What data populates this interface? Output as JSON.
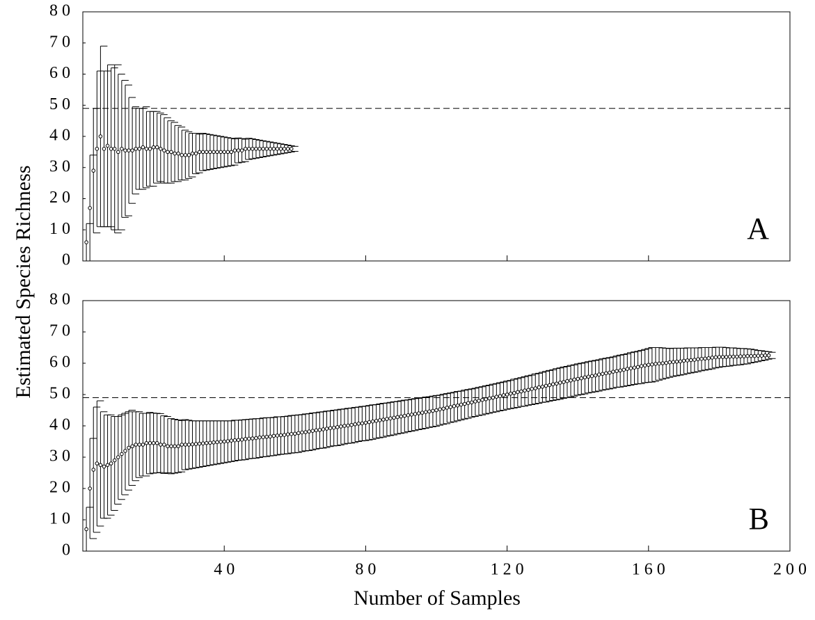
{
  "chart_data": [
    {
      "type": "errorbar",
      "ylabel": "Estimated Species Richness",
      "label": "A",
      "hline": 49,
      "color": "#000000",
      "xlim": [
        0,
        200
      ],
      "xticks": [
        40,
        80,
        120,
        160
      ],
      "xticklabels": false,
      "ylim": [
        0,
        80
      ],
      "yticks": [
        0,
        10,
        20,
        30,
        40,
        50,
        60,
        70,
        80
      ],
      "x": [
        1,
        2,
        3,
        4,
        5,
        6,
        7,
        8,
        9,
        10,
        11,
        12,
        13,
        14,
        15,
        16,
        17,
        18,
        19,
        20,
        21,
        22,
        23,
        24,
        25,
        26,
        27,
        28,
        29,
        30,
        31,
        32,
        33,
        34,
        35,
        36,
        37,
        38,
        39,
        40,
        41,
        42,
        43,
        44,
        45,
        46,
        47,
        48,
        49,
        50,
        51,
        52,
        53,
        54,
        55,
        56,
        57,
        58,
        59
      ],
      "values": [
        6,
        17,
        29,
        36,
        40,
        36,
        37,
        36,
        36,
        35,
        36,
        35.5,
        35.5,
        35.5,
        36,
        36,
        36.5,
        36,
        36,
        36.5,
        36.5,
        36,
        35.5,
        35,
        35,
        34.5,
        34.5,
        34,
        34,
        34,
        34.5,
        34.5,
        35,
        35,
        35,
        35,
        35,
        35,
        35,
        35,
        35,
        35,
        35.5,
        35.5,
        35.5,
        36,
        36,
        36,
        36,
        36,
        36,
        36,
        36,
        36,
        36,
        36,
        36,
        36,
        36
      ],
      "errors": [
        6,
        17,
        20,
        25,
        29,
        25,
        26,
        26,
        27,
        25,
        22,
        21,
        17,
        14,
        13,
        13,
        13,
        12,
        12,
        11.5,
        11,
        11,
        10.5,
        10,
        9.5,
        9,
        8.5,
        8,
        7.5,
        7,
        6.5,
        6.2,
        6,
        5.8,
        5.6,
        5.4,
        5.2,
        5,
        4.8,
        4.6,
        4.4,
        4.2,
        4,
        3.8,
        3.6,
        3.4,
        3.2,
        3,
        2.8,
        2.6,
        2.4,
        2.2,
        2,
        1.8,
        1.6,
        1.4,
        1.2,
        1,
        0.8
      ]
    },
    {
      "type": "errorbar",
      "xlabel": "Number of Samples",
      "label": "B",
      "hline": 49,
      "color": "#000000",
      "xlim": [
        0,
        200
      ],
      "xticks": [
        40,
        80,
        120,
        160,
        200
      ],
      "xticklabels": true,
      "ylim": [
        0,
        80
      ],
      "yticks": [
        0,
        10,
        20,
        30,
        40,
        50,
        60,
        70,
        80
      ],
      "x": [
        1,
        2,
        3,
        4,
        5,
        6,
        7,
        8,
        9,
        10,
        11,
        12,
        13,
        14,
        15,
        16,
        17,
        18,
        19,
        20,
        21,
        22,
        23,
        24,
        25,
        26,
        27,
        28,
        29,
        30,
        31,
        32,
        33,
        34,
        35,
        36,
        37,
        38,
        39,
        40,
        41,
        42,
        43,
        44,
        45,
        46,
        47,
        48,
        49,
        50,
        51,
        52,
        53,
        54,
        55,
        56,
        57,
        58,
        59,
        60,
        61,
        62,
        63,
        64,
        65,
        66,
        67,
        68,
        69,
        70,
        71,
        72,
        73,
        74,
        75,
        76,
        77,
        78,
        79,
        80,
        81,
        82,
        83,
        84,
        85,
        86,
        87,
        88,
        89,
        90,
        91,
        92,
        93,
        94,
        95,
        96,
        97,
        98,
        99,
        100,
        101,
        102,
        103,
        104,
        105,
        106,
        107,
        108,
        109,
        110,
        111,
        112,
        113,
        114,
        115,
        116,
        117,
        118,
        119,
        120,
        121,
        122,
        123,
        124,
        125,
        126,
        127,
        128,
        129,
        130,
        131,
        132,
        133,
        134,
        135,
        136,
        137,
        138,
        139,
        140,
        141,
        142,
        143,
        144,
        145,
        146,
        147,
        148,
        149,
        150,
        151,
        152,
        153,
        154,
        155,
        156,
        157,
        158,
        159,
        160,
        161,
        162,
        163,
        164,
        165,
        166,
        167,
        168,
        169,
        170,
        171,
        172,
        173,
        174,
        175,
        176,
        177,
        178,
        179,
        180,
        181,
        182,
        183,
        184,
        185,
        186,
        187,
        188,
        189,
        190,
        191,
        192,
        193,
        194
      ],
      "values": [
        7,
        20,
        26,
        28,
        27.5,
        27,
        27.5,
        28,
        29,
        30,
        31,
        32,
        33,
        33.5,
        34,
        34,
        34,
        34.5,
        34.5,
        34.5,
        34.5,
        34,
        34,
        33.5,
        33.5,
        33.5,
        33.5,
        34,
        34,
        34,
        34.1,
        34.2,
        34.3,
        34.4,
        34.5,
        34.6,
        34.7,
        34.8,
        34.9,
        35,
        35.1,
        35.3,
        35.4,
        35.5,
        35.6,
        35.8,
        35.9,
        36,
        36.1,
        36.3,
        36.4,
        36.5,
        36.6,
        36.8,
        36.9,
        37,
        37.1,
        37.3,
        37.4,
        37.5,
        37.7,
        37.9,
        38,
        38.2,
        38.4,
        38.6,
        38.7,
        38.9,
        39.1,
        39.3,
        39.4,
        39.6,
        39.8,
        40,
        40.1,
        40.3,
        40.5,
        40.7,
        40.8,
        41,
        41.2,
        41.4,
        41.6,
        41.8,
        42,
        42.2,
        42.4,
        42.6,
        42.8,
        43,
        43.2,
        43.4,
        43.6,
        43.8,
        44,
        44.2,
        44.4,
        44.6,
        44.8,
        45,
        45.3,
        45.5,
        45.8,
        46,
        46.3,
        46.5,
        46.8,
        47,
        47.3,
        47.5,
        47.8,
        48,
        48.3,
        48.5,
        48.8,
        49,
        49.3,
        49.5,
        49.8,
        50,
        50.3,
        50.5,
        50.8,
        51,
        51.3,
        51.5,
        51.8,
        52,
        52.3,
        52.5,
        52.8,
        53,
        53.3,
        53.5,
        53.8,
        54,
        54.3,
        54.5,
        54.8,
        55,
        55.2,
        55.5,
        55.7,
        55.9,
        56.1,
        56.4,
        56.6,
        56.8,
        57,
        57.3,
        57.5,
        57.7,
        57.9,
        58.2,
        58.4,
        58.6,
        58.8,
        59.1,
        59.3,
        59.5,
        59.6,
        59.8,
        59.9,
        60,
        60.1,
        60.3,
        60.4,
        60.5,
        60.6,
        60.8,
        60.9,
        61,
        61.1,
        61.3,
        61.4,
        61.5,
        61.6,
        61.8,
        61.9,
        62,
        62,
        62,
        62.1,
        62.1,
        62.1,
        62.2,
        62.2,
        62.3,
        62.3,
        62.3,
        62.4,
        62.4,
        62.5,
        62.5
      ],
      "errors": [
        7,
        16,
        20,
        20,
        17,
        16.5,
        16,
        15,
        14,
        13.5,
        13,
        12.5,
        12,
        11,
        10.5,
        10,
        10,
        9.8,
        9.6,
        9.5,
        9.4,
        9.2,
        9,
        8.8,
        8.6,
        8.4,
        8.2,
        8,
        7.8,
        7.6,
        7.5,
        7.4,
        7.3,
        7.2,
        7.1,
        7,
        6.9,
        6.8,
        6.7,
        6.6,
        6.5,
        6.5,
        6.4,
        6.4,
        6.4,
        6.3,
        6.3,
        6.3,
        6.2,
        6.2,
        6.2,
        6.1,
        6.1,
        6.1,
        6,
        6,
        6,
        6,
        6,
        6,
        5.9,
        5.9,
        5.9,
        5.9,
        5.8,
        5.8,
        5.8,
        5.8,
        5.7,
        5.7,
        5.7,
        5.7,
        5.6,
        5.6,
        5.6,
        5.6,
        5.5,
        5.5,
        5.5,
        5.5,
        5.5,
        5.4,
        5.4,
        5.4,
        5.3,
        5.3,
        5.3,
        5.2,
        5.2,
        5.2,
        5.1,
        5.1,
        5.1,
        5,
        5,
        5,
        4.9,
        4.9,
        4.9,
        4.8,
        4.8,
        4.8,
        4.7,
        4.7,
        4.7,
        4.6,
        4.6,
        4.6,
        4.5,
        4.5,
        4.5,
        4.5,
        4.5,
        4.5,
        4.5,
        4.5,
        4.5,
        4.5,
        4.5,
        4.5,
        4.6,
        4.6,
        4.6,
        4.7,
        4.7,
        4.7,
        4.8,
        4.8,
        4.8,
        4.9,
        4.9,
        4.9,
        5,
        5,
        5,
        5,
        5,
        5,
        5,
        5,
        5,
        5,
        5,
        5,
        5,
        5,
        5,
        5,
        5,
        5,
        5.1,
        5.1,
        5.1,
        5.2,
        5.2,
        5.2,
        5.3,
        5.3,
        5.4,
        5.5,
        5.4,
        5.2,
        5,
        4.8,
        4.6,
        4.5,
        4.4,
        4.3,
        4.2,
        4.1,
        4,
        3.9,
        3.8,
        3.7,
        3.6,
        3.5,
        3.4,
        3.3,
        3.2,
        3.1,
        3,
        2.9,
        2.8,
        2.7,
        2.6,
        2.5,
        2.4,
        2.2,
        2,
        1.8,
        1.6,
        1.4,
        1.2,
        1
      ]
    }
  ]
}
